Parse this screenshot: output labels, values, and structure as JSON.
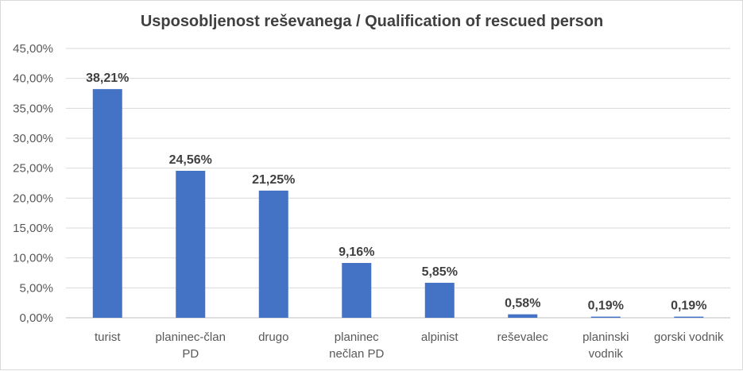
{
  "chart_data": {
    "type": "bar",
    "title": "Usposobljenost reševanega / Qualification of rescued person",
    "xlabel": "",
    "ylabel": "",
    "ylim": [
      0,
      45
    ],
    "yticks": [
      0,
      5,
      10,
      15,
      20,
      25,
      30,
      35,
      40,
      45
    ],
    "ytick_labels": [
      "0,00%",
      "5,00%",
      "10,00%",
      "15,00%",
      "20,00%",
      "25,00%",
      "30,00%",
      "35,00%",
      "40,00%",
      "45,00%"
    ],
    "grid": true,
    "bar_color": "#4472C4",
    "categories": [
      [
        "turist"
      ],
      [
        "planinec-član",
        "PD"
      ],
      [
        "drugo"
      ],
      [
        "planinec",
        "nečlan PD"
      ],
      [
        "alpinist"
      ],
      [
        "reševalec"
      ],
      [
        "planinski",
        "vodnik"
      ],
      [
        "gorski vodnik"
      ]
    ],
    "values": [
      38.21,
      24.56,
      21.25,
      9.16,
      5.85,
      0.58,
      0.19,
      0.19
    ],
    "data_labels": [
      "38,21%",
      "24,56%",
      "21,25%",
      "9,16%",
      "5,85%",
      "0,58%",
      "0,19%",
      "0,19%"
    ]
  }
}
